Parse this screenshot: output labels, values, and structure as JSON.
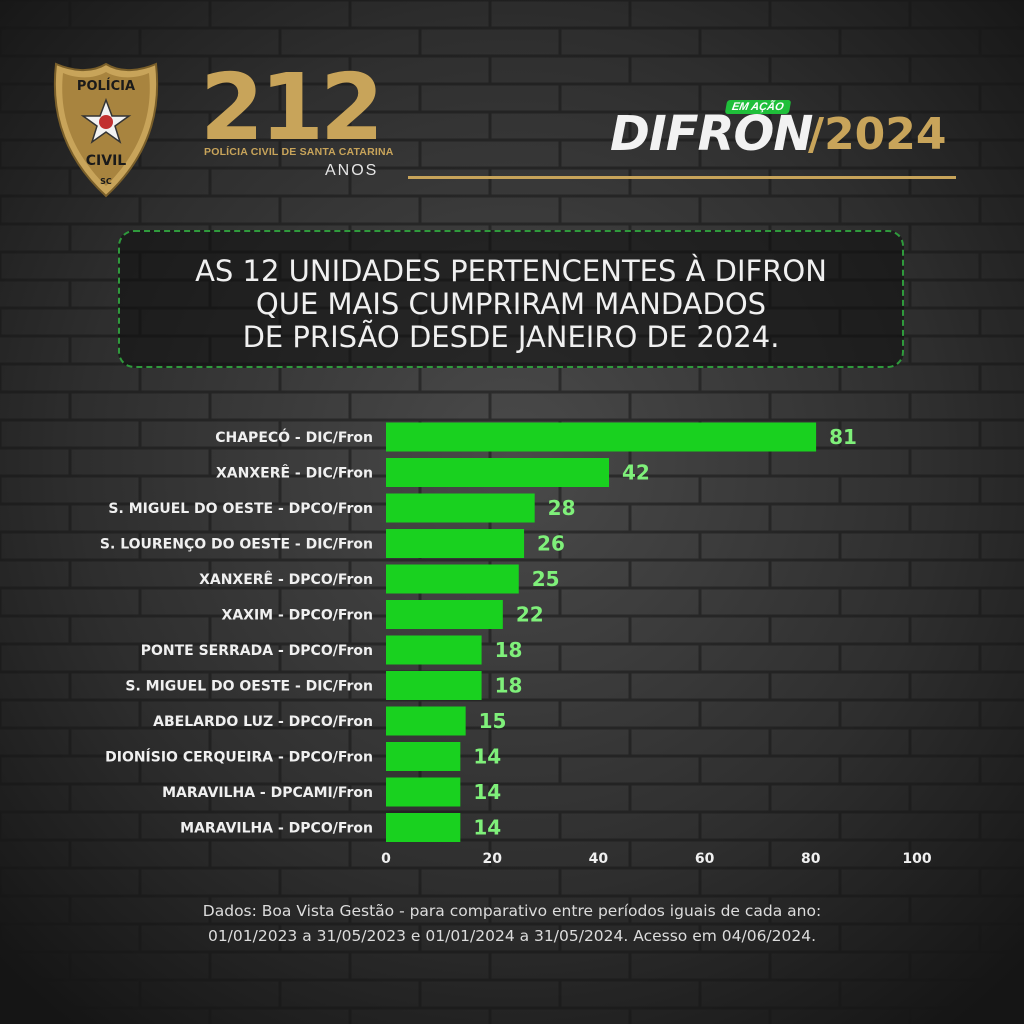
{
  "header": {
    "badge_top": "POLÍCIA",
    "badge_bottom": "CIVIL",
    "badge_state": "SC",
    "logo_number": "212",
    "logo_sub": "POLÍCIA CIVIL DE SANTA CATARINA",
    "logo_anos": "ANOS",
    "tag": "EM AÇÃO",
    "brand": "DIFRON",
    "year": "/2024"
  },
  "title": {
    "line1": "AS 12 UNIDADES PERTENCENTES À DIFRON",
    "line2": "QUE MAIS CUMPRIRAM MANDADOS",
    "line3": "DE PRISÃO DESDE JANEIRO DE 2024."
  },
  "colors": {
    "bar": "#19d11f",
    "value_label": "#7ff07a",
    "gold": "#c8a45a"
  },
  "chart_data": {
    "type": "bar",
    "orientation": "horizontal",
    "categories": [
      "CHAPECÓ - DIC/Fron",
      "XANXERÊ - DIC/Fron",
      "S. MIGUEL DO OESTE - DPCO/Fron",
      "S. LOURENÇO DO OESTE - DIC/Fron",
      "XANXERÊ - DPCO/Fron",
      "XAXIM - DPCO/Fron",
      "PONTE SERRADA - DPCO/Fron",
      "S. MIGUEL DO OESTE - DIC/Fron",
      "ABELARDO LUZ - DPCO/Fron",
      "DIONÍSIO CERQUEIRA - DPCO/Fron",
      "MARAVILHA - DPCAMI/Fron",
      "MARAVILHA - DPCO/Fron"
    ],
    "values": [
      81,
      42,
      28,
      26,
      25,
      22,
      18,
      18,
      15,
      14,
      14,
      14
    ],
    "xlim": [
      0,
      100
    ],
    "xticks": [
      0,
      20,
      40,
      60,
      80,
      100
    ],
    "grid": false,
    "legend": "none"
  },
  "footer": {
    "line1": "Dados: Boa Vista Gestão - para comparativo entre períodos iguais de cada ano:",
    "line2": "01/01/2023 a 31/05/2023  e  01/01/2024 a 31/05/2024. Acesso em 04/06/2024."
  }
}
